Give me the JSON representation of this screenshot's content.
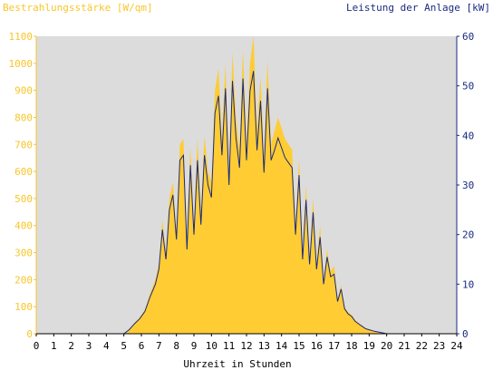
{
  "chart_data": {
    "type": "area",
    "left_axis_title": "Bestrahlungsstärke [W/qm]",
    "right_axis_title": "Leistung der Anlage [kW]",
    "xlabel": "Uhrzeit in Stunden",
    "xlim": [
      0,
      24
    ],
    "x_ticks": [
      0,
      1,
      2,
      3,
      4,
      5,
      6,
      7,
      8,
      9,
      10,
      11,
      12,
      13,
      14,
      15,
      16,
      17,
      18,
      19,
      20,
      21,
      22,
      23,
      24
    ],
    "ylim_left": [
      0,
      1100
    ],
    "y_ticks_left": [
      0,
      100,
      200,
      300,
      400,
      500,
      600,
      700,
      800,
      900,
      1000,
      1100
    ],
    "ylim_right": [
      0,
      60
    ],
    "y_ticks_right": [
      0,
      10,
      20,
      30,
      40,
      50,
      60
    ],
    "grid": false,
    "colors": {
      "plot_background": "#dcdcdc",
      "irradiance": "#ffcc33",
      "power": "#1a2a80",
      "left_axis": "#f7c62a",
      "right_axis": "#1a2a80"
    },
    "series": [
      {
        "name": "Bestrahlungsstärke [W/qm]",
        "axis": "left",
        "style": "filled-area",
        "x": [
          0,
          5.0,
          5.3,
          5.6,
          5.9,
          6.2,
          6.5,
          6.8,
          7.0,
          7.2,
          7.4,
          7.6,
          7.8,
          8.0,
          8.2,
          8.4,
          8.6,
          8.8,
          9.0,
          9.2,
          9.4,
          9.6,
          9.8,
          10.0,
          10.2,
          10.4,
          10.6,
          10.8,
          11.0,
          11.2,
          11.4,
          11.6,
          11.8,
          12.0,
          12.2,
          12.4,
          12.6,
          12.8,
          13.0,
          13.2,
          13.4,
          13.6,
          13.8,
          14.0,
          14.2,
          14.4,
          14.6,
          14.8,
          15.0,
          15.2,
          15.4,
          15.6,
          15.8,
          16.0,
          16.2,
          16.4,
          16.6,
          16.8,
          17.0,
          17.2,
          17.4,
          17.6,
          17.8,
          18.0,
          18.2,
          18.4,
          18.6,
          18.8,
          19.0,
          19.3,
          19.6,
          20.0,
          24
        ],
        "values": [
          0,
          0,
          15,
          40,
          60,
          90,
          150,
          200,
          260,
          420,
          300,
          500,
          560,
          380,
          700,
          720,
          350,
          690,
          400,
          720,
          450,
          730,
          600,
          560,
          900,
          980,
          720,
          1000,
          600,
          1040,
          800,
          680,
          1050,
          700,
          1000,
          1100,
          750,
          950,
          650,
          1010,
          700,
          750,
          800,
          760,
          720,
          700,
          680,
          400,
          650,
          300,
          550,
          280,
          500,
          260,
          400,
          200,
          310,
          230,
          250,
          130,
          180,
          100,
          80,
          70,
          50,
          40,
          30,
          20,
          15,
          10,
          5,
          0,
          0
        ]
      },
      {
        "name": "Leistung der Anlage [kW]",
        "axis": "right",
        "style": "line",
        "x": [
          0,
          5.0,
          5.3,
          5.6,
          5.9,
          6.2,
          6.5,
          6.8,
          7.0,
          7.2,
          7.4,
          7.6,
          7.8,
          8.0,
          8.2,
          8.4,
          8.6,
          8.8,
          9.0,
          9.2,
          9.4,
          9.6,
          9.8,
          10.0,
          10.2,
          10.4,
          10.6,
          10.8,
          11.0,
          11.2,
          11.4,
          11.6,
          11.8,
          12.0,
          12.2,
          12.4,
          12.6,
          12.8,
          13.0,
          13.2,
          13.4,
          13.6,
          13.8,
          14.0,
          14.2,
          14.4,
          14.6,
          14.8,
          15.0,
          15.2,
          15.4,
          15.6,
          15.8,
          16.0,
          16.2,
          16.4,
          16.6,
          16.8,
          17.0,
          17.2,
          17.4,
          17.6,
          17.8,
          18.0,
          18.2,
          18.4,
          18.6,
          18.8,
          19.0,
          19.3,
          19.6,
          20.0,
          24
        ],
        "values": [
          0,
          0,
          0.8,
          2.0,
          3.0,
          4.5,
          7.5,
          10.0,
          13.0,
          21.0,
          15.0,
          25.0,
          28.0,
          19.0,
          35.0,
          36.0,
          17.0,
          34.0,
          20.0,
          35.0,
          22.0,
          36.0,
          30.0,
          27.5,
          44.5,
          48.0,
          36.0,
          49.5,
          30.0,
          51.0,
          39.5,
          33.5,
          51.5,
          35.0,
          49.0,
          53.0,
          37.0,
          47.0,
          32.5,
          49.5,
          35.0,
          37.0,
          39.5,
          37.5,
          35.5,
          34.5,
          33.5,
          20.0,
          32.0,
          15.0,
          27.0,
          14.0,
          24.5,
          13.0,
          19.5,
          10.0,
          15.5,
          11.5,
          12.0,
          6.5,
          9.0,
          5.0,
          4.0,
          3.5,
          2.5,
          2.0,
          1.5,
          1.0,
          0.8,
          0.5,
          0.3,
          0,
          0
        ]
      }
    ]
  }
}
